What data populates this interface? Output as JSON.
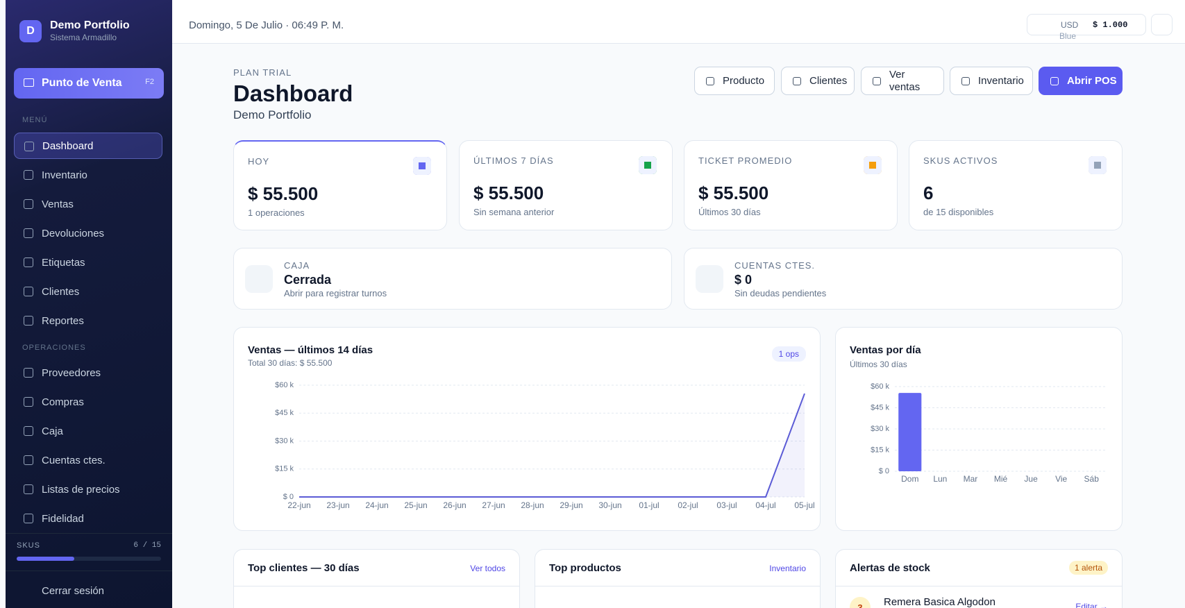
{
  "sidebar": {
    "avatar": "D",
    "brand": "Demo Portfolio",
    "brand_sub": "Sistema Armadillo",
    "pos_button": "Punto de Venta",
    "pos_key": "F2",
    "menu_label": "MENÚ",
    "menu": [
      "Dashboard",
      "Inventario",
      "Ventas",
      "Devoluciones",
      "Etiquetas",
      "Clientes",
      "Reportes"
    ],
    "ops_label": "OPERACIONES",
    "ops": [
      "Proveedores",
      "Compras",
      "Caja",
      "Cuentas ctes.",
      "Listas de precios",
      "Fidelidad"
    ],
    "skus_label": "SKUS",
    "skus_used": 6,
    "skus_sep": "/",
    "skus_total": 15,
    "logout": "Cerrar sesión"
  },
  "topbar": {
    "date": "Domingo, 5 De Julio · 06:49 P. M.",
    "currency": "USD",
    "currency_sub": "Blue",
    "rate": "$ 1.000"
  },
  "header": {
    "plan": "PLAN TRIAL",
    "title": "Dashboard",
    "subtitle": "Demo Portfolio",
    "actions": [
      "Producto",
      "Clientes",
      "Ver ventas",
      "Inventario"
    ],
    "primary": "Abrir POS"
  },
  "kpis": [
    {
      "label": "HOY",
      "value": "$ 55.500",
      "note": "1 operaciones"
    },
    {
      "label": "ÚLTIMOS 7 DÍAS",
      "value": "$ 55.500",
      "note": "Sin semana anterior"
    },
    {
      "label": "TICKET PROMEDIO",
      "value": "$ 55.500",
      "note": "Últimos 30 días"
    },
    {
      "label": "SKUS ACTIVOS",
      "value": "6",
      "note": "de 15 disponibles"
    }
  ],
  "status": [
    {
      "label": "CAJA",
      "value": "Cerrada",
      "note": "Abrir para registrar turnos"
    },
    {
      "label": "CUENTAS CTES.",
      "value": "$ 0",
      "note": "Sin deudas pendientes"
    }
  ],
  "chart_data": [
    {
      "type": "line",
      "title": "Ventas — últimos 14 días",
      "subtitle": "Total 30 días: $ 55.500",
      "badge": "1 ops",
      "categories": [
        "22-jun",
        "23-jun",
        "24-jun",
        "25-jun",
        "26-jun",
        "27-jun",
        "28-jun",
        "29-jun",
        "30-jun",
        "01-jul",
        "02-jul",
        "03-jul",
        "04-jul",
        "05-jul"
      ],
      "values": [
        0,
        0,
        0,
        0,
        0,
        0,
        0,
        0,
        0,
        0,
        0,
        0,
        0,
        55500
      ],
      "color": "#5b5bd6",
      "ylim": [
        0,
        60000
      ],
      "yticks": [
        {
          "value": 0,
          "label": "$ 0"
        },
        {
          "value": 15000,
          "label": "$15 k"
        },
        {
          "value": 30000,
          "label": "$30 k"
        },
        {
          "value": 45000,
          "label": "$45 k"
        },
        {
          "value": 60000,
          "label": "$60 k"
        }
      ],
      "grid": true
    },
    {
      "type": "bar",
      "title": "Ventas por día",
      "subtitle": "Últimos 30 días",
      "categories": [
        "Dom",
        "Lun",
        "Mar",
        "Mié",
        "Jue",
        "Vie",
        "Sáb"
      ],
      "values": [
        55500,
        0,
        0,
        0,
        0,
        0,
        0
      ],
      "color": "#6366f1",
      "ylim": [
        0,
        60000
      ],
      "yticks": [
        {
          "value": 0,
          "label": "$ 0"
        },
        {
          "value": 15000,
          "label": "$15 k"
        },
        {
          "value": 30000,
          "label": "$30 k"
        },
        {
          "value": 45000,
          "label": "$45 k"
        },
        {
          "value": 60000,
          "label": "$60 k"
        }
      ],
      "grid": true
    }
  ],
  "panels": [
    {
      "title": "Top clientes — 30 días",
      "link": "Ver todos"
    },
    {
      "title": "Top productos",
      "link": "Inventario"
    },
    {
      "title": "Alertas de stock",
      "badge": "1 alerta",
      "item_count": "3",
      "item": "Remera Basica Algodon",
      "item_link": "Editar →"
    }
  ]
}
